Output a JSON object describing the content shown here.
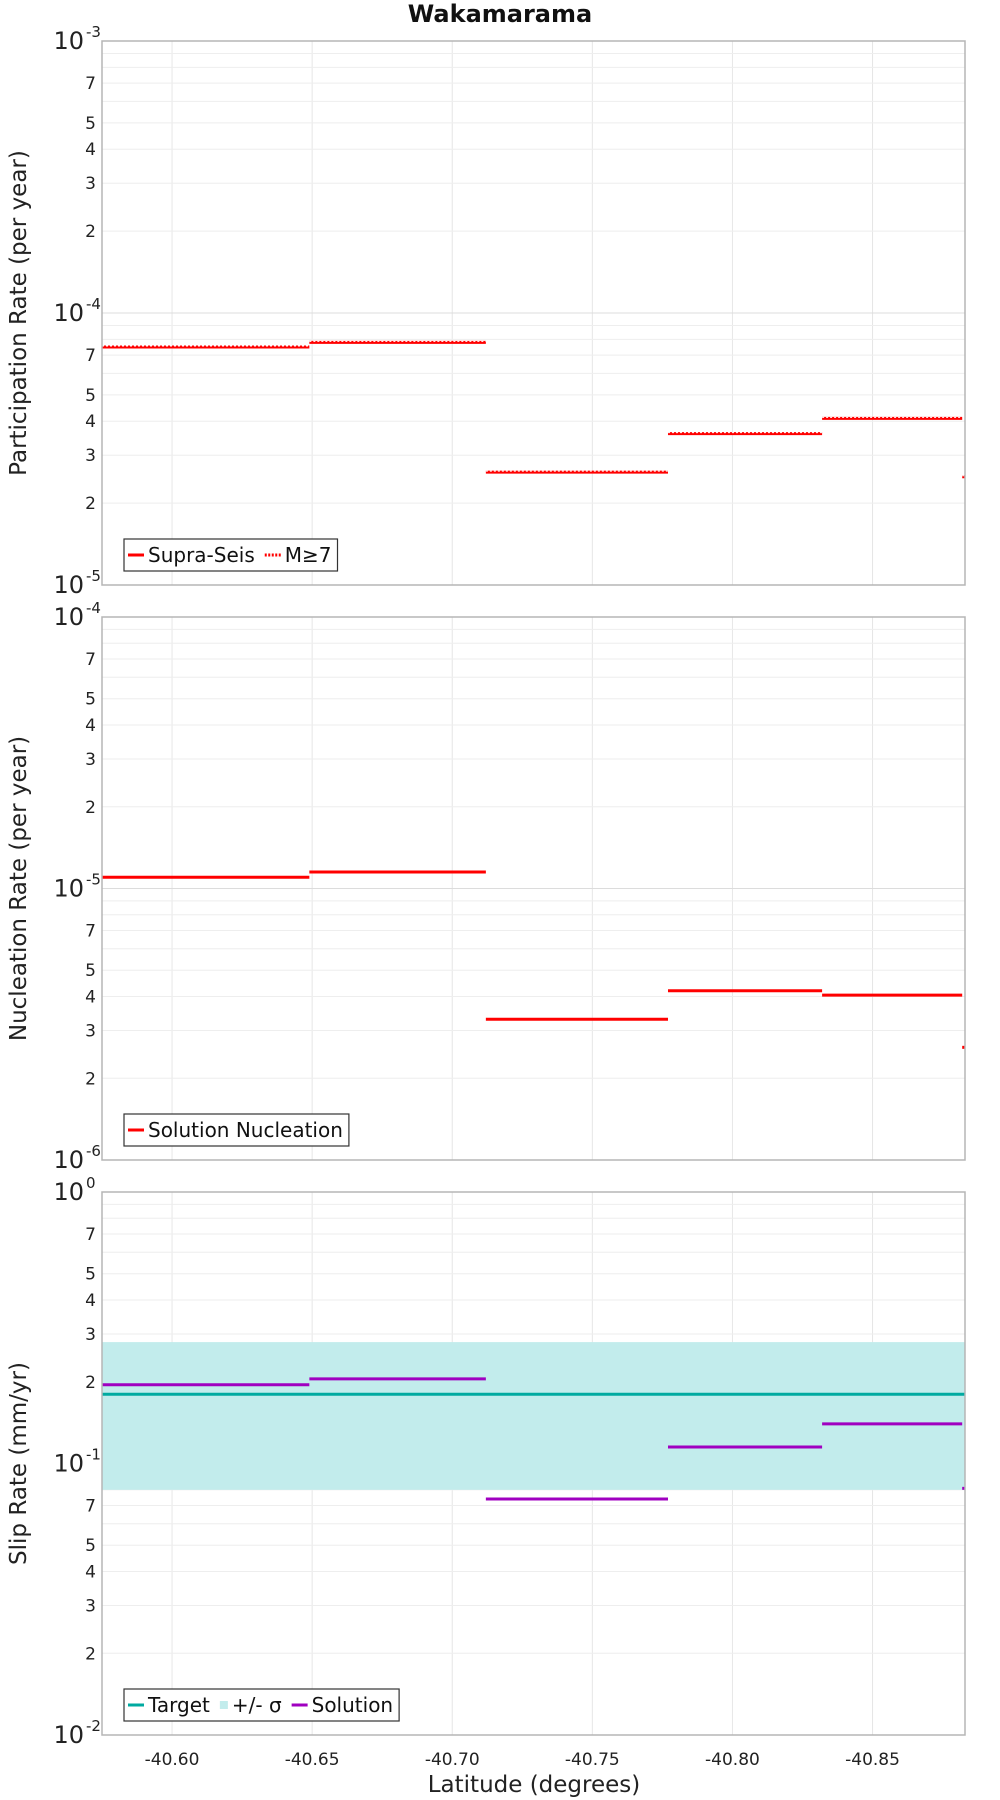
{
  "title": "Wakamarama",
  "xlabel": "Latitude (degrees)",
  "x_ticks": [
    "-40.60",
    "-40.65",
    "-40.70",
    "-40.75",
    "-40.80",
    "-40.85"
  ],
  "chart_data": [
    {
      "type": "line",
      "ylabel": "Participation Rate (per year)",
      "yscale": "log",
      "ylim": [
        1e-05,
        0.001
      ],
      "xlim": [
        -40.575,
        -40.883
      ],
      "legend": [
        {
          "label": "Supra-Seis",
          "style": "solid",
          "color": "#ff0000"
        },
        {
          "label": "M≥7",
          "style": "dotted",
          "color": "#ff0000"
        }
      ],
      "legend_position": "bottom-left",
      "series": [
        {
          "name": "Supra-Seis",
          "color": "#ff0000",
          "segments": [
            {
              "x": [
                -40.575,
                -40.649
              ],
              "y": 7.5e-05
            },
            {
              "x": [
                -40.649,
                -40.712
              ],
              "y": 7.8e-05
            },
            {
              "x": [
                -40.712,
                -40.777
              ],
              "y": 2.6e-05
            },
            {
              "x": [
                -40.777,
                -40.832
              ],
              "y": 3.6e-05
            },
            {
              "x": [
                -40.832,
                -40.882
              ],
              "y": 4.1e-05
            },
            {
              "x": [
                -40.882,
                -40.888
              ],
              "y": 2.5e-05
            }
          ]
        },
        {
          "name": "M≥7",
          "color": "#ff0000",
          "dotted": true,
          "segments": [
            {
              "x": [
                -40.575,
                -40.649
              ],
              "y": 7.5e-05
            },
            {
              "x": [
                -40.649,
                -40.712
              ],
              "y": 7.8e-05
            },
            {
              "x": [
                -40.712,
                -40.777
              ],
              "y": 2.6e-05
            },
            {
              "x": [
                -40.777,
                -40.832
              ],
              "y": 3.6e-05
            },
            {
              "x": [
                -40.832,
                -40.882
              ],
              "y": 4.1e-05
            },
            {
              "x": [
                -40.882,
                -40.888
              ],
              "y": 2.5e-05
            }
          ]
        }
      ]
    },
    {
      "type": "line",
      "ylabel": "Nucleation Rate (per year)",
      "yscale": "log",
      "ylim": [
        1e-06,
        0.0001
      ],
      "xlim": [
        -40.575,
        -40.883
      ],
      "legend": [
        {
          "label": "Solution Nucleation",
          "style": "solid",
          "color": "#ff0000"
        }
      ],
      "legend_position": "bottom-left",
      "series": [
        {
          "name": "Solution Nucleation",
          "color": "#ff0000",
          "segments": [
            {
              "x": [
                -40.575,
                -40.649
              ],
              "y": 1.1e-05
            },
            {
              "x": [
                -40.649,
                -40.712
              ],
              "y": 1.15e-05
            },
            {
              "x": [
                -40.712,
                -40.777
              ],
              "y": 3.3e-06
            },
            {
              "x": [
                -40.777,
                -40.832
              ],
              "y": 4.2e-06
            },
            {
              "x": [
                -40.832,
                -40.882
              ],
              "y": 4.05e-06
            },
            {
              "x": [
                -40.882,
                -40.888
              ],
              "y": 2.6e-06
            }
          ]
        }
      ]
    },
    {
      "type": "line",
      "ylabel": "Slip Rate (mm/yr)",
      "yscale": "log",
      "ylim": [
        0.01,
        1
      ],
      "xlim": [
        -40.575,
        -40.883
      ],
      "legend": [
        {
          "label": "Target",
          "style": "solid",
          "color": "#00aaa0"
        },
        {
          "label": "+/- σ",
          "style": "band",
          "color": "#c2ecec"
        },
        {
          "label": "Solution",
          "style": "solid",
          "color": "#a000c0"
        }
      ],
      "legend_position": "bottom-left",
      "band": {
        "name": "+/- σ",
        "lower": 0.08,
        "upper": 0.28,
        "color": "#c2ecec"
      },
      "series": [
        {
          "name": "Target",
          "color": "#00aaa0",
          "segments": [
            {
              "x": [
                -40.575,
                -40.888
              ],
              "y": 0.18
            }
          ]
        },
        {
          "name": "Solution",
          "color": "#a000c0",
          "segments": [
            {
              "x": [
                -40.575,
                -40.649
              ],
              "y": 0.195
            },
            {
              "x": [
                -40.649,
                -40.712
              ],
              "y": 0.205
            },
            {
              "x": [
                -40.712,
                -40.777
              ],
              "y": 0.074
            },
            {
              "x": [
                -40.777,
                -40.832
              ],
              "y": 0.115
            },
            {
              "x": [
                -40.832,
                -40.882
              ],
              "y": 0.14
            },
            {
              "x": [
                -40.882,
                -40.888
              ],
              "y": 0.081
            }
          ]
        }
      ]
    }
  ]
}
